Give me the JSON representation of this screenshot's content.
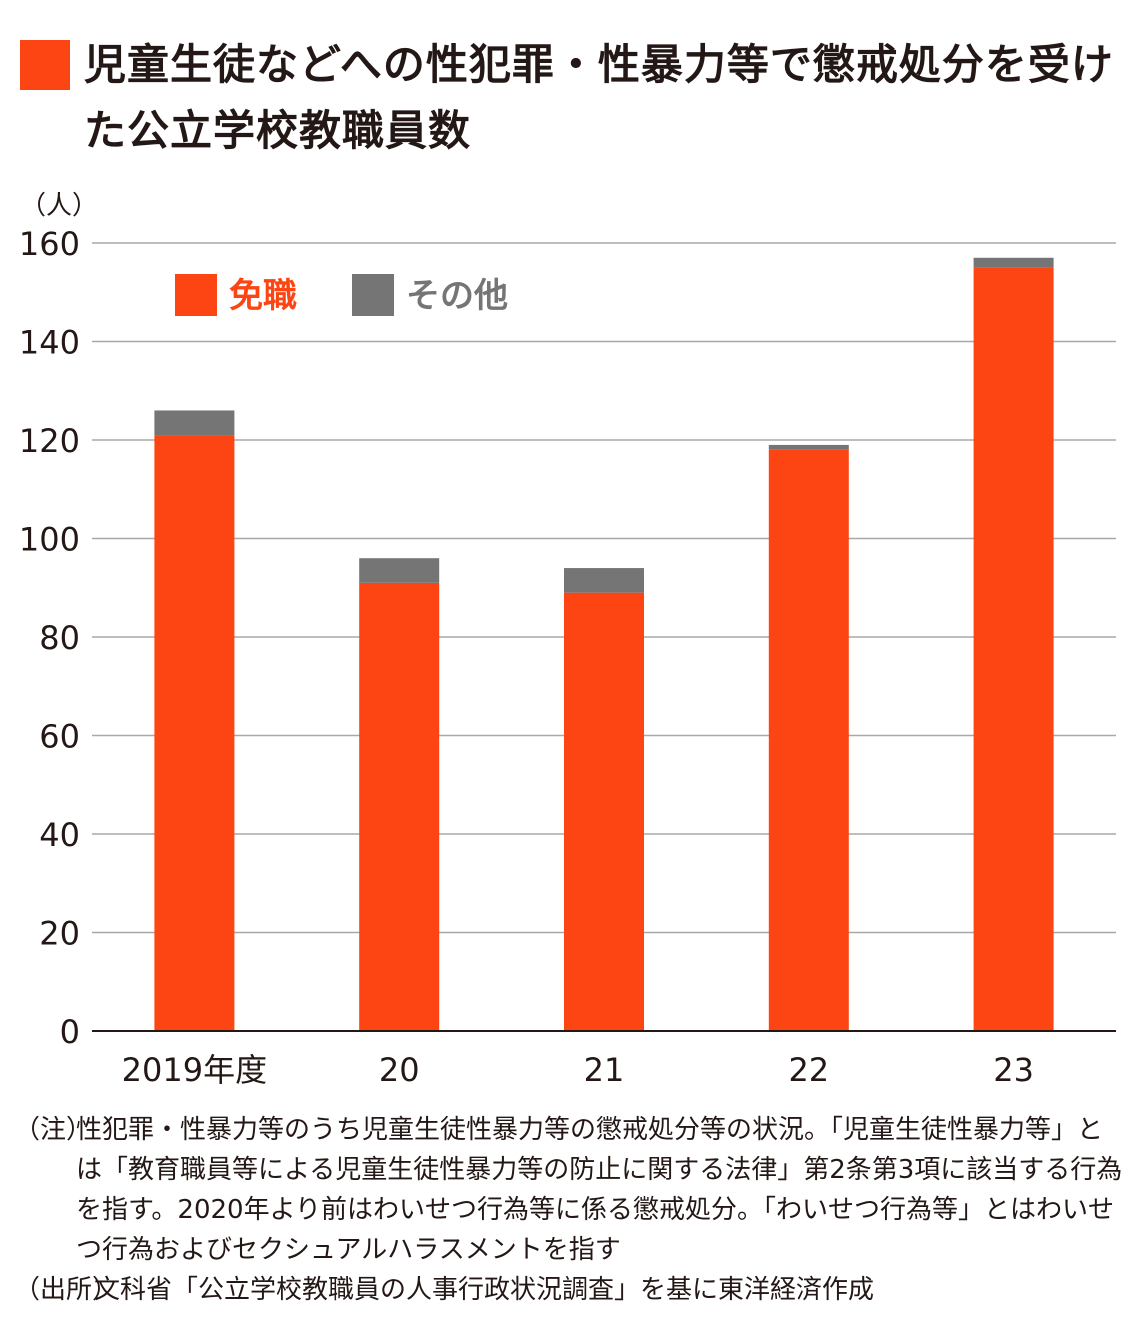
{
  "title": "児童生徒などへの性犯罪・性暴力等で懲戒処分を受けた公立学校教職員数",
  "colors": {
    "dismissal": "#fc4512",
    "other": "#757575",
    "grid": "#a8a8a8",
    "axis": "#231815",
    "text": "#231815"
  },
  "chart_data": {
    "type": "bar",
    "stacked": true,
    "categories": [
      "2019年度",
      "20",
      "21",
      "22",
      "23"
    ],
    "series": [
      {
        "name": "免職",
        "values": [
          121,
          91,
          89,
          118,
          155
        ]
      },
      {
        "name": "その他",
        "values": [
          5,
          5,
          5,
          1,
          2
        ]
      }
    ],
    "ylabel": "（人）",
    "ylim": [
      0,
      160
    ],
    "yticks": [
      0,
      20,
      40,
      60,
      80,
      100,
      120,
      140,
      160
    ],
    "grid": true,
    "legend_position": "top-left"
  },
  "notes": {
    "note_tag": "（注）",
    "note_text": "性犯罪・性暴力等のうち児童生徒性暴力等の懲戒処分等の状況。「児童生徒性暴力等」とは「教育職員等による児童生徒性暴力等の防止に関する法律」第2条第3項に該当する行為を指す。2020年より前はわいせつ行為等に係る懲戒処分。「わいせつ行為等」とはわいせつ行為およびセクシュアルハラスメントを指す",
    "source_tag": "（出所）",
    "source_text": "文科省「公立学校教職員の人事行政状況調査」を基に東洋経済作成"
  }
}
